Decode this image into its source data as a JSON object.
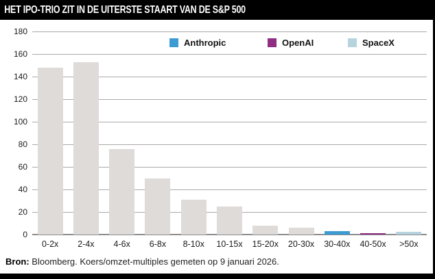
{
  "title": "HET IPO-TRIO ZIT IN DE UITERSTE STAART VAN DE S&P 500",
  "legend": [
    {
      "label": "Anthropic",
      "color": "#3d9bd3"
    },
    {
      "label": "OpenAI",
      "color": "#8f2e82"
    },
    {
      "label": "SpaceX",
      "color": "#b6d3de"
    }
  ],
  "chart_data": {
    "type": "bar",
    "title": "HET IPO-TRIO ZIT IN DE UITERSTE STAART VAN DE S&P 500",
    "categories": [
      "0-2x",
      "2-4x",
      "4-6x",
      "6-8x",
      "8-10x",
      "10-15x",
      "15-20x",
      "20-30x",
      "30-40x",
      "40-50x",
      ">50x"
    ],
    "values": [
      148,
      153,
      76,
      50,
      31,
      25,
      8,
      6,
      3,
      1.5,
      2.5
    ],
    "bar_series": [
      null,
      null,
      null,
      null,
      null,
      null,
      null,
      null,
      "Anthropic",
      "OpenAI",
      "SpaceX"
    ],
    "default_bar_color": "#dedbd8",
    "ylim": [
      0,
      180
    ],
    "ytick_step": 20,
    "grid": true,
    "gridline_color": "#a9a9a9",
    "axisline_color": "#8c8c8c",
    "legend_position": "top",
    "xlabel": "",
    "ylabel": ""
  },
  "footer": {
    "source_label": "Bron:",
    "source_text": " Bloomberg. Koers/omzet-multiples gemeten op 9 januari 2026."
  }
}
